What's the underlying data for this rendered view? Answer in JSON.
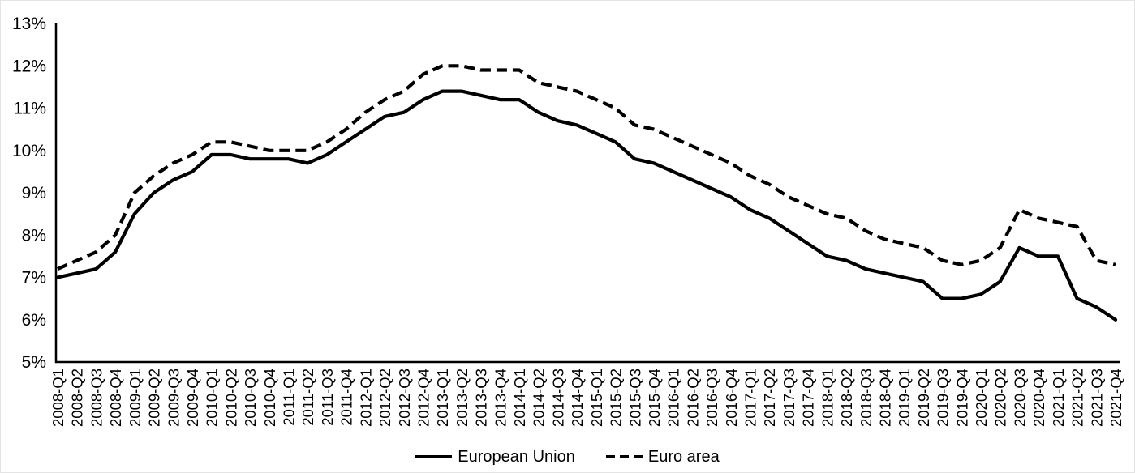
{
  "page": {
    "background": "#ffffff",
    "border_color": "#e4e4e4",
    "line_color": "#000000",
    "text_color": "#000000"
  },
  "chart_data": {
    "type": "line",
    "title": "",
    "xlabel": "",
    "ylabel": "",
    "grid": false,
    "y_axis": {
      "min": 5,
      "max": 13,
      "step": 1,
      "format": "percent",
      "tick_labels": [
        "13%",
        "12%",
        "11%",
        "10%",
        "9%",
        "8%",
        "7%",
        "6%",
        "5%"
      ]
    },
    "categories": [
      "2008-Q1",
      "2008-Q2",
      "2008-Q3",
      "2008-Q4",
      "2009-Q1",
      "2009-Q2",
      "2009-Q3",
      "2009-Q4",
      "2010-Q1",
      "2010-Q2",
      "2010-Q3",
      "2010-Q4",
      "2011-Q1",
      "2011-Q2",
      "2011-Q3",
      "2011-Q4",
      "2012-Q1",
      "2012-Q2",
      "2012-Q3",
      "2012-Q4",
      "2013-Q1",
      "2013-Q2",
      "2013-Q3",
      "2013-Q4",
      "2014-Q1",
      "2014-Q2",
      "2014-Q3",
      "2014-Q4",
      "2015-Q1",
      "2015-Q2",
      "2015-Q3",
      "2015-Q4",
      "2016-Q1",
      "2016-Q2",
      "2016-Q3",
      "2016-Q4",
      "2017-Q1",
      "2017-Q2",
      "2017-Q3",
      "2017-Q4",
      "2018-Q1",
      "2018-Q2",
      "2018-Q3",
      "2018-Q4",
      "2019-Q1",
      "2019-Q2",
      "2019-Q3",
      "2019-Q4",
      "2020-Q1",
      "2020-Q2",
      "2020-Q3",
      "2020-Q4",
      "2021-Q1",
      "2021-Q2",
      "2021-Q3",
      "2021-Q4"
    ],
    "series": [
      {
        "name": "European Union",
        "style": "solid",
        "color": "#000000",
        "values": [
          7.0,
          7.1,
          7.2,
          7.6,
          8.5,
          9.0,
          9.3,
          9.5,
          9.9,
          9.9,
          9.8,
          9.8,
          9.8,
          9.7,
          9.9,
          10.2,
          10.5,
          10.8,
          10.9,
          11.2,
          11.4,
          11.4,
          11.3,
          11.2,
          11.2,
          10.9,
          10.7,
          10.6,
          10.4,
          10.2,
          9.8,
          9.7,
          9.5,
          9.3,
          9.1,
          8.9,
          8.6,
          8.4,
          8.1,
          7.8,
          7.5,
          7.4,
          7.2,
          7.1,
          7.0,
          6.9,
          6.5,
          6.5,
          6.6,
          6.9,
          7.7,
          7.5,
          7.5,
          6.5,
          6.3,
          6.0
        ]
      },
      {
        "name": "Euro area",
        "style": "dashed",
        "color": "#000000",
        "values": [
          7.2,
          7.4,
          7.6,
          8.0,
          9.0,
          9.4,
          9.7,
          9.9,
          10.2,
          10.2,
          10.1,
          10.0,
          10.0,
          10.0,
          10.2,
          10.5,
          10.9,
          11.2,
          11.4,
          11.8,
          12.0,
          12.0,
          11.9,
          11.9,
          11.9,
          11.6,
          11.5,
          11.4,
          11.2,
          11.0,
          10.6,
          10.5,
          10.3,
          10.1,
          9.9,
          9.7,
          9.4,
          9.2,
          8.9,
          8.7,
          8.5,
          8.4,
          8.1,
          7.9,
          7.8,
          7.7,
          7.4,
          7.3,
          7.4,
          7.7,
          8.6,
          8.4,
          8.3,
          8.2,
          7.4,
          7.3
        ]
      }
    ],
    "legend": {
      "position": "bottom-center",
      "items": [
        "European Union",
        "Euro area"
      ]
    }
  }
}
